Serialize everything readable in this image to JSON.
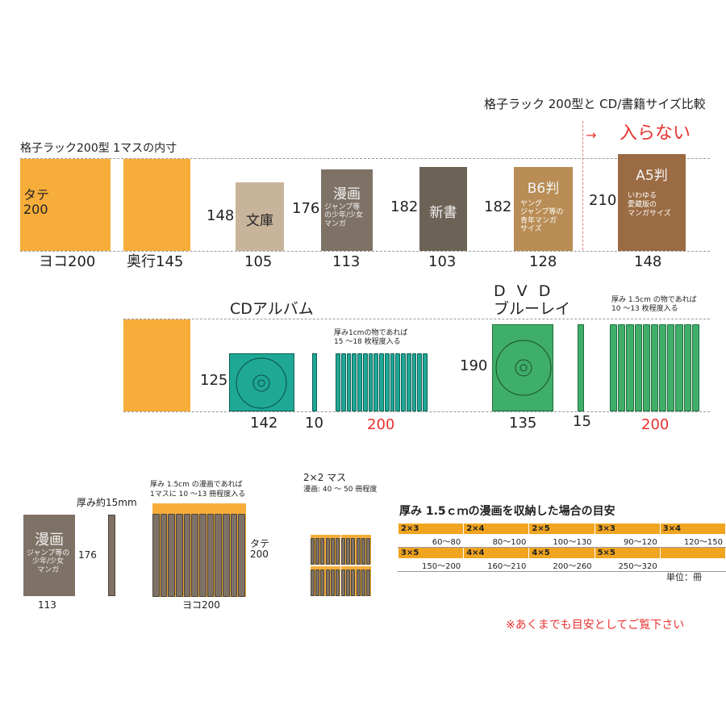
{
  "header": {
    "title": "格子ラック 200型と CD/書籍サイズ比較",
    "cell_label": "格子ラック200型 1マスの内寸",
    "arrow": "→",
    "not_fit": "入らない"
  },
  "cell": {
    "height_label": "タテ\n200",
    "width_label": "ヨコ200",
    "depth_label": "奥行145"
  },
  "books": [
    {
      "name": "文庫",
      "height": "148",
      "width": "105"
    },
    {
      "name": "漫画",
      "sub": "ジャンプ等\nの少年/少女\nマンガ",
      "height": "176",
      "width": "113"
    },
    {
      "name": "新書",
      "height": "182",
      "width": "103"
    },
    {
      "name": "B6判",
      "sub": "ヤング\nジャンプ等の\n青年マンガ\nサイズ",
      "height": "182",
      "width": "128"
    },
    {
      "name": "A5判",
      "sub": "いわゆる\n愛蔵版の\nマンガサイズ",
      "height": "210",
      "width": "148"
    }
  ],
  "cd": {
    "title": "CDアルバム",
    "height": "125",
    "width": "142",
    "thickness": "10",
    "fill_note": "厚み1cmの物であれば\n15 ～18 枚程度入る",
    "total": "200"
  },
  "dvd": {
    "title_line1": "D V D",
    "title_line2": "ブルーレイ",
    "height": "190",
    "width": "135",
    "thickness": "15",
    "fill_note": "厚み 1.5cm の物であれば\n10 ～13 枚程度入る",
    "total": "200"
  },
  "manga_demo": {
    "name": "漫画",
    "sub": "ジャンプ等の\n少年/少女\nマンガ",
    "height": "176",
    "width": "113",
    "thickness_label": "厚み約15mm",
    "fill_note": "厚み 1.5cm の漫画であれば\n1マスに 10 ～13 冊程度入る",
    "cell_height": "タテ\n200",
    "cell_width": "ヨコ200"
  },
  "grid2x2": {
    "title": "2×2 マス",
    "note": "漫画: 40 ～ 50 冊程度"
  },
  "table": {
    "title": "厚み 1.5ｃｍの漫画を収納した場合の目安",
    "row1_headers": [
      "2×3",
      "2×4",
      "2×5",
      "3×3",
      "3×4"
    ],
    "row1_values": [
      "60～80",
      "80～100",
      "100～130",
      "90～120",
      "120～150"
    ],
    "row2_headers": [
      "3×5",
      "4×4",
      "4×5",
      "5×5",
      ""
    ],
    "row2_values": [
      "150～200",
      "160～210",
      "200～260",
      "250～320",
      ""
    ],
    "unit": "単位：冊"
  },
  "footnote": "※あくまでも目安としてご覧下さい",
  "colors": {
    "cell": "#f7ad3a",
    "bunko": "#c8b49b",
    "manga": "#7e7266",
    "shinsho": "#6d6256",
    "b6": "#b98d55",
    "a5": "#9b6b43",
    "cd": "#1ea895",
    "dvd": "#3fae6a",
    "accent_red": "#e8322f"
  }
}
